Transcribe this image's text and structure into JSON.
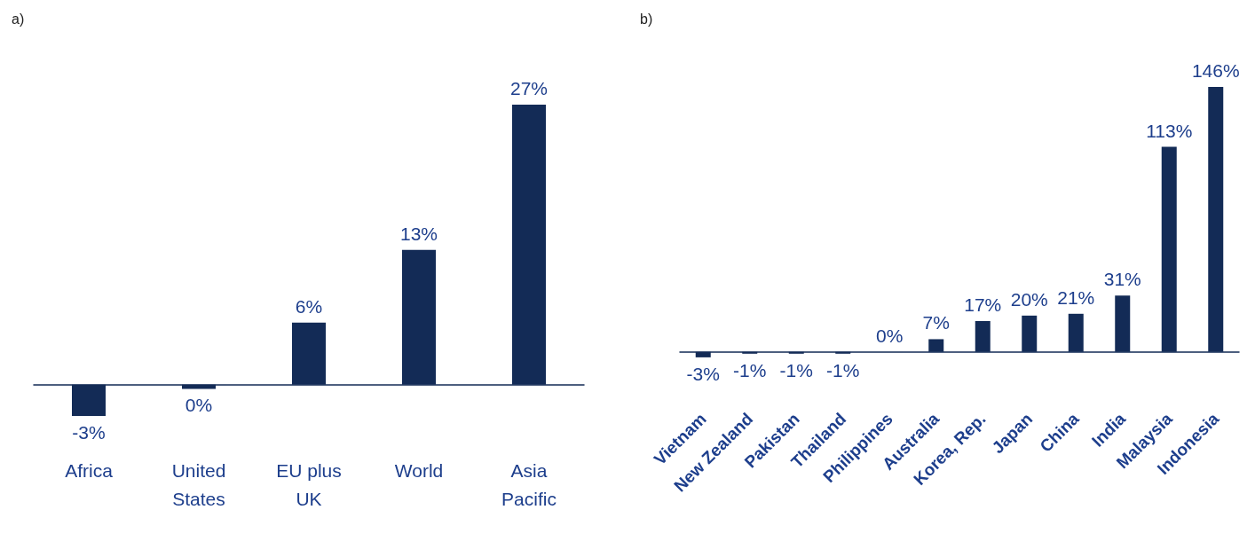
{
  "chart_data": [
    {
      "type": "bar",
      "title": "a)",
      "categories": [
        "Africa",
        "United\nStates",
        "EU plus\nUK",
        "World",
        "Asia\nPacific"
      ],
      "values": [
        -3,
        -0.4,
        6,
        13,
        27
      ],
      "value_labels": [
        "-3%",
        "0%",
        "6%",
        "13%",
        "27%"
      ],
      "color": "#132b56",
      "grid": false
    },
    {
      "type": "bar",
      "title": "b)",
      "categories": [
        "Vietnam",
        "New Zealand",
        "Pakistan",
        "Thailand",
        "Philippines",
        "Australia",
        "Korea, Rep.",
        "Japan",
        "China",
        "India",
        "Malaysia",
        "Indonesia"
      ],
      "values": [
        -3,
        -1,
        -1,
        -1,
        0,
        7,
        17,
        20,
        21,
        31,
        113,
        146
      ],
      "value_labels": [
        "-3%",
        "-1%",
        "-1%",
        "-1%",
        "0%",
        "7%",
        "17%",
        "20%",
        "21%",
        "31%",
        "113%",
        "146%"
      ],
      "color": "#132b56",
      "grid": false
    }
  ]
}
